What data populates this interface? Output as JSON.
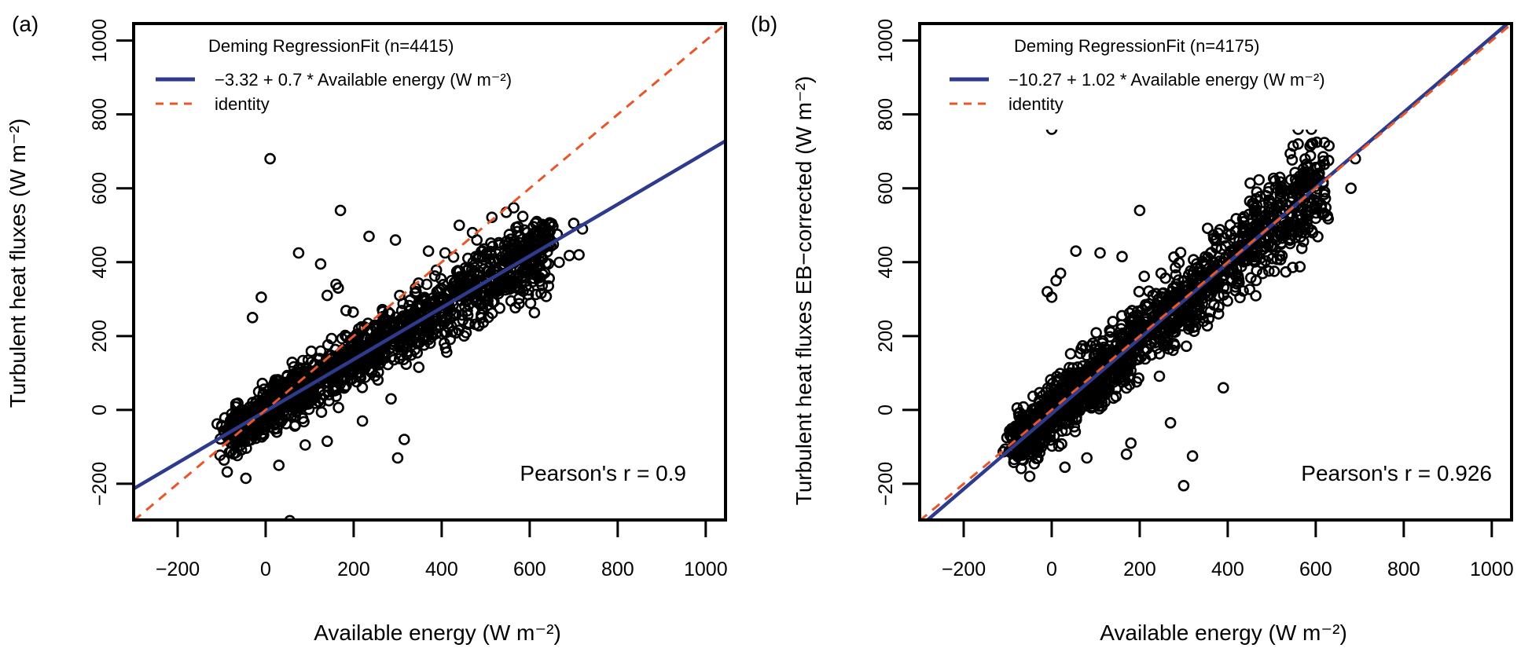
{
  "chart_data": [
    {
      "type": "scatter",
      "panel_label": "(a)",
      "xlabel": "Available energy (W m⁻²)",
      "ylabel": "Turbulent heat fluxes (W m⁻²)",
      "xlim": [
        -300,
        1045
      ],
      "ylim": [
        -298,
        1046
      ],
      "xticks": [
        -200,
        0,
        200,
        400,
        600,
        800,
        1000
      ],
      "yticks": [
        -200,
        0,
        200,
        400,
        600,
        800,
        1000
      ],
      "grid": false,
      "legend": {
        "placement": "top-left",
        "title": "Deming RegressionFit (n=4415)",
        "entries": [
          {
            "label": "−3.32 + 0.7 * Available energy (W m⁻²)",
            "style": "solid",
            "color": "#2e3a8c"
          },
          {
            "label": "identity",
            "style": "dashed",
            "color": "#e8572a"
          }
        ]
      },
      "fit": {
        "intercept": -3.32,
        "slope": 0.7,
        "n": 4415
      },
      "identity": {
        "intercept": 0,
        "slope": 1
      },
      "annotation": "Pearson's r = 0.9",
      "pearson_r": 0.9,
      "point_cloud": {
        "x_center_range": [
          -80,
          650
        ],
        "slope": 0.7,
        "intercept": -3.32,
        "spread": 45
      },
      "outliers": [
        [
          10,
          680
        ],
        [
          170,
          540
        ],
        [
          75,
          425
        ],
        [
          125,
          395
        ],
        [
          160,
          340
        ],
        [
          165,
          330
        ],
        [
          140,
          310
        ],
        [
          -10,
          305
        ],
        [
          -30,
          250
        ],
        [
          295,
          460
        ],
        [
          235,
          470
        ],
        [
          370,
          430
        ],
        [
          440,
          500
        ],
        [
          470,
          480
        ],
        [
          480,
          460
        ],
        [
          700,
          505
        ],
        [
          720,
          490
        ],
        [
          690,
          418
        ],
        [
          712,
          420
        ],
        [
          300,
          -130
        ],
        [
          315,
          -80
        ],
        [
          55,
          -300
        ],
        [
          -45,
          -185
        ],
        [
          30,
          -150
        ],
        [
          90,
          -95
        ],
        [
          140,
          -85
        ],
        [
          220,
          -30
        ],
        [
          285,
          30
        ]
      ]
    },
    {
      "type": "scatter",
      "panel_label": "(b)",
      "xlabel": "Available energy (W m⁻²)",
      "ylabel": "Turbulent heat fluxes EB−corrected (W m⁻²)",
      "xlim": [
        -300,
        1045
      ],
      "ylim": [
        -298,
        1046
      ],
      "xticks": [
        -200,
        0,
        200,
        400,
        600,
        800,
        1000
      ],
      "yticks": [
        -200,
        0,
        200,
        400,
        600,
        800,
        1000
      ],
      "grid": false,
      "legend": {
        "placement": "top-left",
        "title": "Deming RegressionFit (n=4175)",
        "entries": [
          {
            "label": "−10.27 + 1.02 * Available energy (W m⁻²)",
            "style": "solid",
            "color": "#2e3a8c"
          },
          {
            "label": "identity",
            "style": "dashed",
            "color": "#e8572a"
          }
        ]
      },
      "fit": {
        "intercept": -10.27,
        "slope": 1.02,
        "n": 4175
      },
      "identity": {
        "intercept": 0,
        "slope": 1
      },
      "annotation": "Pearson's r = 0.926",
      "pearson_r": 0.926,
      "point_cloud": {
        "x_center_range": [
          -80,
          620
        ],
        "slope": 1.02,
        "intercept": -10.27,
        "spread": 55
      },
      "outliers": [
        [
          0,
          760
        ],
        [
          560,
          760
        ],
        [
          590,
          760
        ],
        [
          560,
          720
        ],
        [
          590,
          720
        ],
        [
          630,
          715
        ],
        [
          690,
          680
        ],
        [
          680,
          600
        ],
        [
          200,
          540
        ],
        [
          450,
          565
        ],
        [
          55,
          430
        ],
        [
          110,
          425
        ],
        [
          160,
          415
        ],
        [
          20,
          370
        ],
        [
          10,
          350
        ],
        [
          -10,
          320
        ],
        [
          0,
          305
        ],
        [
          300,
          -205
        ],
        [
          320,
          -125
        ],
        [
          -50,
          -180
        ],
        [
          30,
          -155
        ],
        [
          80,
          -130
        ],
        [
          170,
          -120
        ],
        [
          180,
          -90
        ],
        [
          390,
          60
        ],
        [
          270,
          -35
        ]
      ]
    }
  ]
}
